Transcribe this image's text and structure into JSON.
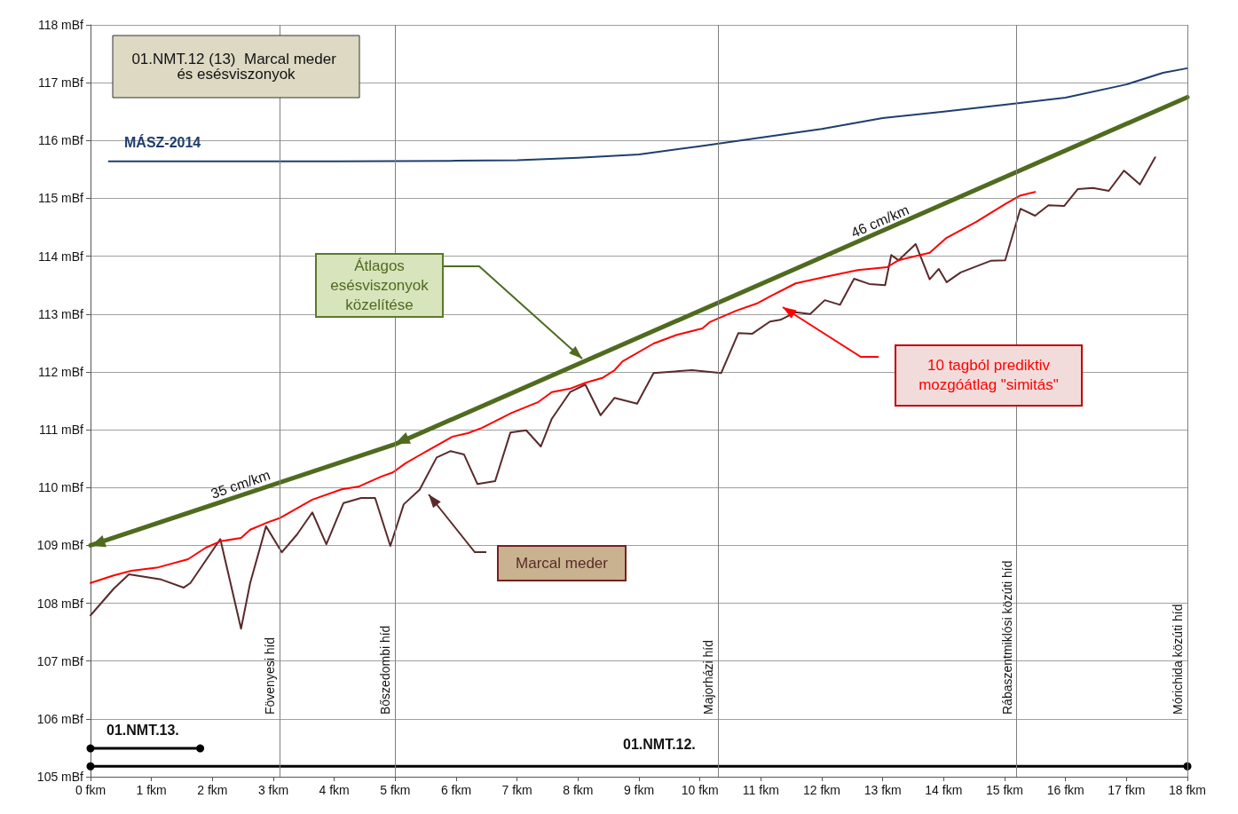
{
  "chart_data": {
    "type": "line",
    "title": "01.NMT.12 (13)  Marcal meder és esésviszonyok",
    "xlim": [
      0,
      18
    ],
    "xticks": [
      {
        "value": 0,
        "label": "0 fkm"
      },
      {
        "value": 1,
        "label": "1 fkm"
      },
      {
        "value": 2,
        "label": "2 fkm"
      },
      {
        "value": 3,
        "label": "3 fkm"
      },
      {
        "value": 4,
        "label": "4 fkm"
      },
      {
        "value": 5,
        "label": "5 fkm"
      },
      {
        "value": 6,
        "label": "6 fkm"
      },
      {
        "value": 7,
        "label": "7 fkm"
      },
      {
        "value": 8,
        "label": "8 fkm"
      },
      {
        "value": 9,
        "label": "9 fkm"
      },
      {
        "value": 10,
        "label": "10 fkm"
      },
      {
        "value": 11,
        "label": "11 fkm"
      },
      {
        "value": 12,
        "label": "12 fkm"
      },
      {
        "value": 13,
        "label": "13 fkm"
      },
      {
        "value": 14,
        "label": "14 fkm"
      },
      {
        "value": 15,
        "label": "15 fkm"
      },
      {
        "value": 16,
        "label": "16 fkm"
      },
      {
        "value": 17,
        "label": "17 fkm"
      },
      {
        "value": 18,
        "label": "18 fkm"
      }
    ],
    "ylim": [
      105,
      118
    ],
    "yticks": [
      {
        "value": 105,
        "label": "105 mBf"
      },
      {
        "value": 106,
        "label": "106 mBf"
      },
      {
        "value": 107,
        "label": "107 mBf"
      },
      {
        "value": 108,
        "label": "108 mBf"
      },
      {
        "value": 109,
        "label": "109 mBf"
      },
      {
        "value": 110,
        "label": "110 mBf"
      },
      {
        "value": 111,
        "label": "111 mBf"
      },
      {
        "value": 112,
        "label": "112 mBf"
      },
      {
        "value": 113,
        "label": "113 mBf"
      },
      {
        "value": 114,
        "label": "114 mBf"
      },
      {
        "value": 115,
        "label": "115 mBf"
      },
      {
        "value": 116,
        "label": "116 mBf"
      },
      {
        "value": 117,
        "label": "117 mBf"
      },
      {
        "value": 118,
        "label": "118 mBf"
      }
    ],
    "grid": "y",
    "legend": false,
    "marker": "none",
    "line_style": "solid",
    "series": [
      {
        "name": "MÁSZ-2014",
        "color": "#1f3e6e",
        "x": [
          0.3,
          2,
          4,
          6,
          7,
          8,
          9,
          10,
          11,
          12,
          13,
          14,
          15,
          16,
          17,
          17.6,
          18
        ],
        "values": [
          115.64,
          115.64,
          115.64,
          115.65,
          115.66,
          115.7,
          115.76,
          115.9,
          116.05,
          116.2,
          116.39,
          116.5,
          116.62,
          116.74,
          116.97,
          117.17,
          117.25
        ]
      },
      {
        "name": "Marcal meder",
        "color": "#5a2a2a",
        "x": [
          0,
          0.38,
          0.63,
          1.16,
          1.53,
          1.64,
          2.13,
          2.47,
          2.62,
          2.88,
          3.14,
          3.39,
          3.64,
          3.87,
          4.15,
          4.44,
          4.67,
          4.92,
          5.14,
          5.4,
          5.68,
          5.91,
          6.13,
          6.35,
          6.64,
          6.89,
          7.15,
          7.39,
          7.57,
          7.87,
          8.12,
          8.37,
          8.6,
          8.97,
          9.24,
          9.87,
          10.35,
          10.63,
          10.86,
          11.15,
          11.32,
          11.57,
          11.81,
          12.05,
          12.3,
          12.53,
          12.78,
          13.04,
          13.14,
          13.26,
          13.54,
          13.77,
          13.92,
          14.05,
          14.28,
          14.77,
          15.01,
          15.26,
          15.5,
          15.72,
          15.98,
          16.2,
          16.45,
          16.71,
          16.96,
          17.22,
          17.47
        ],
        "values": [
          107.79,
          108.25,
          108.5,
          108.41,
          108.27,
          108.35,
          109.11,
          107.56,
          108.35,
          109.33,
          108.88,
          109.19,
          109.57,
          109.02,
          109.73,
          109.82,
          109.82,
          108.99,
          109.71,
          109.96,
          110.52,
          110.63,
          110.57,
          110.06,
          110.11,
          110.95,
          110.99,
          110.71,
          111.19,
          111.65,
          111.78,
          111.25,
          111.55,
          111.45,
          111.98,
          112.03,
          111.98,
          112.67,
          112.66,
          112.87,
          112.9,
          113.03,
          113.0,
          113.24,
          113.16,
          113.61,
          113.52,
          113.5,
          114.02,
          113.93,
          114.21,
          113.6,
          113.78,
          113.55,
          113.72,
          113.92,
          113.93,
          114.82,
          114.7,
          114.88,
          114.87,
          115.16,
          115.18,
          115.13,
          115.48,
          115.24,
          115.71
        ]
      },
      {
        "name": "10 tagból  prediktiv mozgóátlag \"simitás\"",
        "color": "#ff0000",
        "x": [
          0,
          0.38,
          0.67,
          1.11,
          1.6,
          1.89,
          2.13,
          2.47,
          2.62,
          2.91,
          3.1,
          3.64,
          4.12,
          4.41,
          4.77,
          4.96,
          5.17,
          5.4,
          5.94,
          6.19,
          6.42,
          6.91,
          7.35,
          7.57,
          7.87,
          8.12,
          8.41,
          8.6,
          8.73,
          9.24,
          9.62,
          10.04,
          10.16,
          10.6,
          10.93,
          11.18,
          11.57,
          12.05,
          12.59,
          13.07,
          13.26,
          13.77,
          14.05,
          14.53,
          15.01,
          15.26,
          15.5
        ],
        "values": [
          108.35,
          108.48,
          108.56,
          108.62,
          108.76,
          108.96,
          109.07,
          109.13,
          109.27,
          109.4,
          109.47,
          109.79,
          109.97,
          110.02,
          110.19,
          110.26,
          110.42,
          110.56,
          110.88,
          110.94,
          111.03,
          111.29,
          111.48,
          111.65,
          111.71,
          111.81,
          111.9,
          112.03,
          112.18,
          112.49,
          112.64,
          112.75,
          112.86,
          113.06,
          113.18,
          113.32,
          113.53,
          113.64,
          113.76,
          113.81,
          113.93,
          114.06,
          114.32,
          114.59,
          114.9,
          115.05,
          115.11
        ]
      },
      {
        "name": "Átlagos esésviszonyok közelítése",
        "color": "#4f6b1f",
        "x": [
          0,
          5,
          18
        ],
        "values": [
          109,
          110.75,
          116.75
        ]
      },
      {
        "name": "01.NMT.13.",
        "color": "#000000",
        "marker": "circle",
        "x": [
          0,
          1.8
        ],
        "values": [
          105.49,
          105.49
        ]
      },
      {
        "name": "01.NMT.12.",
        "color": "#000000",
        "marker": "circle",
        "x": [
          0,
          18
        ],
        "values": [
          105.18,
          105.18
        ]
      }
    ],
    "ref_lines": [
      {
        "axis": "x",
        "value": 3.1,
        "label": "Fövenyesi híd",
        "color": "#808080"
      },
      {
        "axis": "x",
        "value": 5,
        "label": "Bőszedombi híd",
        "color": "#808080"
      },
      {
        "axis": "x",
        "value": 10.3,
        "label": "Majorházi híd",
        "color": "#808080"
      },
      {
        "axis": "x",
        "value": 15.2,
        "label": "Rábaszentmiklósi közúti híd",
        "color": "#808080"
      },
      {
        "axis": "x",
        "value": 18,
        "label": "Mórichida közúti híd",
        "color": "#808080"
      }
    ],
    "annotations": [
      {
        "text": "35 cm/km",
        "x": 2.5,
        "y": 109.88
      },
      {
        "text": "46 cm/km",
        "x": 13,
        "y": 114.43
      }
    ]
  }
}
